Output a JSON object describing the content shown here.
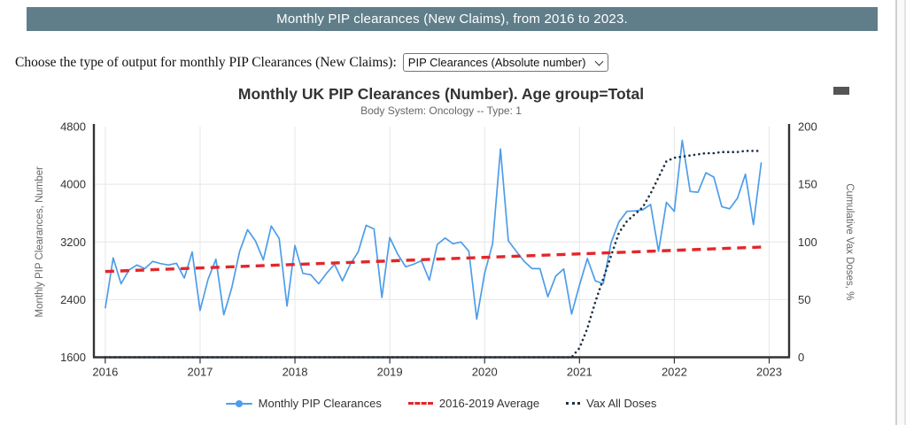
{
  "page": {
    "header": {
      "title": "Monthly PIP clearances (New Claims), from 2016 to 2023.",
      "bg_color": "#5f7e8a",
      "text_color": "#ffffff"
    },
    "control": {
      "label": "Choose the type of output for monthly PIP Clearances (New Claims):",
      "selected_option": "PIP Clearances (Absolute number)"
    }
  },
  "chart": {
    "title": "Monthly UK PIP Clearances (Number). Age group=Total",
    "subtitle": "Body System: Oncology -- Type: 1",
    "menu_icon": "hamburger-icon"
  },
  "chart_data": {
    "type": "line",
    "title": "Monthly UK PIP Clearances (Number). Age group=Total",
    "subtitle": "Body System: Oncology -- Type: 1",
    "grid": true,
    "legend_position": "bottom",
    "x_tick_labels": [
      "2016",
      "2017",
      "2018",
      "2019",
      "2020",
      "2021",
      "2022",
      "2023"
    ],
    "x_range_years": [
      2015.88,
      2023.21
    ],
    "y_left": {
      "title": "Monthly PIP Clearances, Number",
      "ticks": [
        1600,
        2400,
        3200,
        4000,
        4800
      ],
      "range": [
        1600,
        4800
      ]
    },
    "y_right": {
      "title": "Cumulative Vax Doses, %",
      "ticks": [
        0,
        50,
        100,
        150,
        200
      ],
      "range": [
        0,
        200
      ]
    },
    "series": [
      {
        "name": "Monthly PIP Clearances",
        "style": "solid-line-with-markers",
        "color": "#4d9de9",
        "axis": "left",
        "start_year": 2016,
        "monthly_values": [
          2280,
          2980,
          2620,
          2810,
          2880,
          2830,
          2930,
          2900,
          2880,
          2905,
          2700,
          3060,
          2250,
          2680,
          2960,
          2190,
          2560,
          3070,
          3370,
          3215,
          2950,
          3420,
          3250,
          2310,
          3150,
          2765,
          2745,
          2620,
          2765,
          2890,
          2660,
          2890,
          3060,
          3430,
          3380,
          2430,
          3260,
          3030,
          2855,
          2890,
          2940,
          2670,
          3165,
          3255,
          3175,
          3200,
          3070,
          2130,
          2765,
          3175,
          4490,
          3215,
          3070,
          2930,
          2830,
          2830,
          2440,
          2725,
          2825,
          2200,
          2600,
          2970,
          2660,
          2620,
          3190,
          3480,
          3625,
          3630,
          3645,
          3720,
          3070,
          3750,
          3625,
          4610,
          3900,
          3890,
          4160,
          4100,
          3690,
          3660,
          3810,
          4140,
          3440,
          4305
        ]
      },
      {
        "name": "2016-2019 Average",
        "style": "dashed-line",
        "color": "#e3262a",
        "axis": "left",
        "points": [
          {
            "year": 2016.0,
            "value": 2790
          },
          {
            "year": 2022.95,
            "value": 3130
          }
        ]
      },
      {
        "name": "Vax All Doses",
        "style": "dotted-line",
        "color": "#1c2f45",
        "axis": "right",
        "start_year": 2016,
        "monthly_values": [
          0,
          0,
          0,
          0,
          0,
          0,
          0,
          0,
          0,
          0,
          0,
          0,
          0,
          0,
          0,
          0,
          0,
          0,
          0,
          0,
          0,
          0,
          0,
          0,
          0,
          0,
          0,
          0,
          0,
          0,
          0,
          0,
          0,
          0,
          0,
          0,
          0,
          0,
          0,
          0,
          0,
          0,
          0,
          0,
          0,
          0,
          0,
          0,
          0,
          0,
          0,
          0,
          0,
          0,
          0,
          0,
          0,
          0,
          0,
          0,
          8,
          25,
          48,
          68,
          88,
          108,
          118,
          124,
          130,
          142,
          156,
          170,
          173,
          174,
          175,
          176,
          177,
          177,
          178,
          178,
          178,
          179,
          179,
          179
        ]
      }
    ],
    "legend": [
      "Monthly PIP Clearances",
      "2016-2019 Average",
      "Vax All Doses"
    ]
  }
}
